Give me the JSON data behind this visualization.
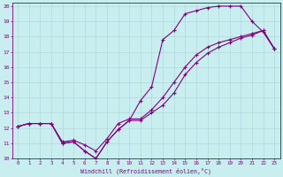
{
  "title": "",
  "xlabel": "Windchill (Refroidissement éolien,°C)",
  "bg_color": "#c8eef0",
  "line_color": "#800080",
  "grid_color": "#b0d8dc",
  "xlim": [
    -0.5,
    23.5
  ],
  "ylim": [
    10,
    20.2
  ],
  "xticks": [
    0,
    1,
    2,
    3,
    4,
    5,
    6,
    7,
    8,
    9,
    10,
    11,
    12,
    13,
    14,
    15,
    16,
    17,
    18,
    19,
    20,
    21,
    22,
    23
  ],
  "yticks": [
    10,
    11,
    12,
    13,
    14,
    15,
    16,
    17,
    18,
    19,
    20
  ],
  "line1_x": [
    0,
    1,
    2,
    3,
    4,
    5,
    6,
    7,
    8,
    9,
    10,
    11,
    12,
    13,
    14,
    15,
    16,
    17,
    18,
    19,
    20,
    21,
    22,
    23
  ],
  "line1_y": [
    12.1,
    12.3,
    12.3,
    12.3,
    11.0,
    11.1,
    10.5,
    10.0,
    11.1,
    11.9,
    12.5,
    13.8,
    14.7,
    17.8,
    18.4,
    19.5,
    19.7,
    19.9,
    20.0,
    20.0,
    20.0,
    19.0,
    18.3,
    17.2
  ],
  "line2_x": [
    0,
    1,
    2,
    3,
    4,
    5,
    6,
    7,
    8,
    9,
    10,
    11,
    12,
    13,
    14,
    15,
    16,
    17,
    18,
    19,
    20,
    21,
    22,
    23
  ],
  "line2_y": [
    12.1,
    12.3,
    12.3,
    12.3,
    11.1,
    11.2,
    10.9,
    10.5,
    11.3,
    12.3,
    12.6,
    12.6,
    13.2,
    14.0,
    15.0,
    16.0,
    16.8,
    17.3,
    17.6,
    17.8,
    18.0,
    18.2,
    18.4,
    17.2
  ],
  "line3_x": [
    0,
    1,
    2,
    3,
    4,
    5,
    6,
    7,
    8,
    9,
    10,
    11,
    12,
    13,
    14,
    15,
    16,
    17,
    18,
    19,
    20,
    21,
    22,
    23
  ],
  "line3_y": [
    12.1,
    12.3,
    12.3,
    12.3,
    11.0,
    11.1,
    10.5,
    10.0,
    11.1,
    11.9,
    12.5,
    12.5,
    13.0,
    13.5,
    14.3,
    15.5,
    16.3,
    16.9,
    17.3,
    17.6,
    17.9,
    18.1,
    18.4,
    17.2
  ]
}
